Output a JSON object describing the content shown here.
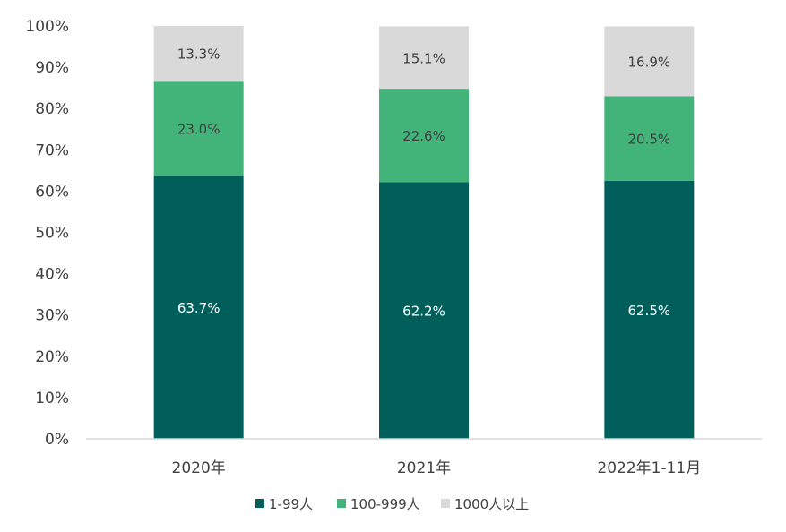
{
  "chart_data": {
    "type": "bar",
    "stacked": true,
    "categories": [
      "2020年",
      "2021年",
      "2022年1-11月"
    ],
    "series": [
      {
        "name": "1-99人",
        "values": [
          63.7,
          62.2,
          62.5
        ],
        "labels": [
          "63.7%",
          "62.2%",
          "62.5%"
        ],
        "color": "#005e5b",
        "label_color": "#ffffff"
      },
      {
        "name": "100-999人",
        "values": [
          23.0,
          22.6,
          20.5
        ],
        "labels": [
          "23.0%",
          "22.6%",
          "20.5%"
        ],
        "color": "#42b47a",
        "label_color": "#404040"
      },
      {
        "name": "1000人以上",
        "values": [
          13.3,
          15.1,
          16.9
        ],
        "labels": [
          "13.3%",
          "15.1%",
          "16.9%"
        ],
        "color": "#d9d9d9",
        "label_color": "#404040"
      }
    ],
    "yticks": [
      "0%",
      "10%",
      "20%",
      "30%",
      "40%",
      "50%",
      "60%",
      "70%",
      "80%",
      "90%",
      "100%"
    ],
    "ylim": [
      0,
      100
    ],
    "grid": false,
    "legend": "bottom"
  }
}
